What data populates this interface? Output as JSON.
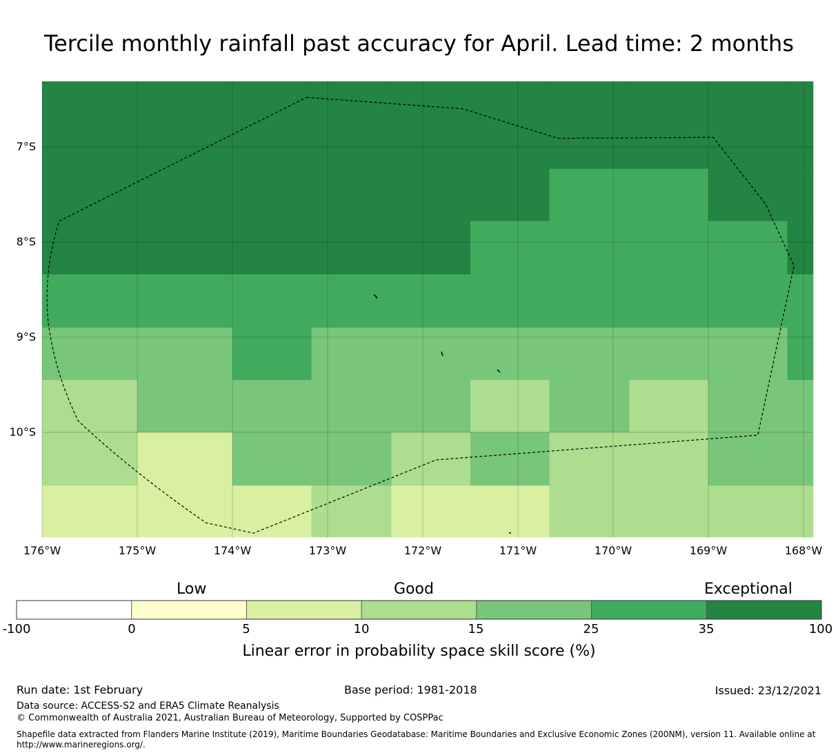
{
  "title": "Tercile monthly rainfall past accuracy for April. Lead time: 2 months",
  "map": {
    "lat_labels": [
      "7°S",
      "8°S",
      "9°S",
      "10°S"
    ],
    "lon_labels": [
      "176°W",
      "175°W",
      "174°W",
      "173°W",
      "172°W",
      "171°W",
      "170°W",
      "169°W",
      "168°W"
    ],
    "lon_range": [
      -176,
      -167.9
    ],
    "lat_range": [
      -6.3,
      -11.1
    ],
    "grid_lons": [
      -176,
      -175,
      -174,
      -173,
      -172,
      -171,
      -170,
      -169,
      -168
    ],
    "grid_lats": [
      -7,
      -8,
      -9,
      -10
    ],
    "cell_lon_edges": [
      -176,
      -175,
      -174,
      -173.17,
      -172.33,
      -171.5,
      -170.67,
      -169.83,
      -169,
      -168.17,
      -167.9
    ],
    "cell_lat_edges": [
      -6.3,
      -7.23,
      -7.78,
      -8.34,
      -8.9,
      -9.45,
      -10.0,
      -10.56,
      -11.1
    ],
    "cells": [
      [
        35,
        35,
        35,
        35,
        35,
        35,
        35,
        35,
        35,
        35
      ],
      [
        35,
        35,
        35,
        35,
        35,
        35,
        25,
        25,
        35,
        35
      ],
      [
        35,
        35,
        35,
        35,
        35,
        25,
        25,
        25,
        25,
        35
      ],
      [
        25,
        25,
        25,
        25,
        25,
        25,
        25,
        25,
        25,
        25
      ],
      [
        15,
        15,
        25,
        15,
        15,
        15,
        15,
        15,
        15,
        25
      ],
      [
        10,
        15,
        15,
        15,
        15,
        10,
        15,
        10,
        15,
        15
      ],
      [
        10,
        5,
        15,
        15,
        10,
        15,
        10,
        10,
        15,
        15
      ],
      [
        5,
        5,
        5,
        10,
        5,
        5,
        10,
        10,
        10,
        10
      ]
    ],
    "eez_boundary": [
      [
        -173.22,
        -6.48
      ],
      [
        -171.58,
        -6.6
      ],
      [
        -170.58,
        -6.91
      ],
      [
        -168.95,
        -6.9
      ],
      [
        -168.4,
        -7.6
      ],
      [
        -168.1,
        -8.25
      ],
      [
        -168.48,
        -10.03
      ],
      [
        -171.86,
        -10.29
      ],
      [
        -173.78,
        -11.06
      ],
      [
        -174.28,
        -10.95
      ],
      [
        -175.62,
        -9.88
      ],
      [
        -175.94,
        -8.8
      ],
      [
        -175.82,
        -7.78
      ],
      [
        -173.22,
        -6.48
      ]
    ]
  },
  "colorbar": {
    "category_labels": [
      "Low",
      "Good",
      "Exceptional"
    ],
    "tick_labels": [
      "-100",
      "0",
      "5",
      "10",
      "15",
      "25",
      "35",
      "100"
    ],
    "colors": [
      "#ffffff",
      "#ffffcc",
      "#d9f0a3",
      "#addd8e",
      "#78c679",
      "#41ab5d",
      "#238443"
    ],
    "thresholds": [
      -100,
      0,
      5,
      10,
      15,
      25,
      35,
      100
    ],
    "caption": "Linear error in probability space skill score (%)"
  },
  "footer": {
    "run_date": "Run date: 1st February",
    "base_period": "Base period: 1981-2018",
    "issued": "Issued: 23/12/2021",
    "data_source": "Data source: ACCESS-S2 and ERA5 Climate Reanalysis",
    "copyright": "© Commonwealth of Australia 2021, Australian Bureau of Meteorology, Supported by COSPPac",
    "shapefile_note": "Shapefile data extracted from Flanders Marine Institute (2019), Maritime Boundaries Geodatabase: Maritime Boundaries and Exclusive Economic Zones (200NM), version 11. Available online at http://www.marineregions.org/."
  }
}
